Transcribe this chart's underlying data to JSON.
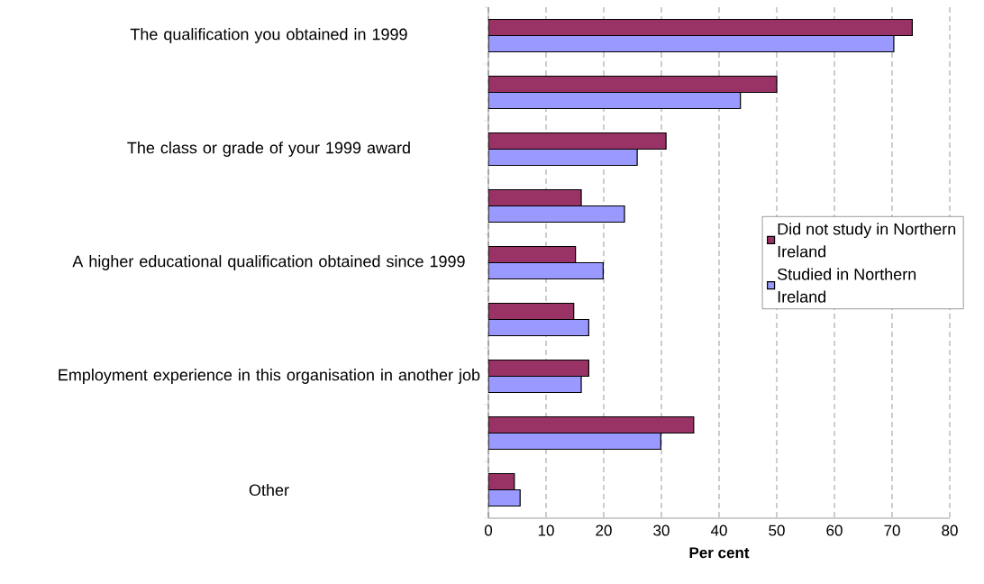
{
  "chart_data": {
    "type": "bar",
    "orientation": "horizontal",
    "xlabel": "Per cent",
    "categories": [
      "The qualification you obtained in 1999",
      null,
      "The class or grade of your 1999 award",
      null,
      "A higher educational qualification obtained since 1999",
      null,
      "Employment experience in this organisation in another job",
      null,
      "Other"
    ],
    "series": [
      {
        "name": "Did not study in Northern Ireland",
        "color": "#993366",
        "values": [
          73.5,
          50.0,
          30.8,
          16.1,
          15.1,
          14.8,
          17.4,
          35.6,
          4.5
        ]
      },
      {
        "name": "Studied in Northern Ireland",
        "color": "#9999ff",
        "values": [
          70.3,
          43.7,
          25.8,
          23.6,
          19.9,
          17.4,
          16.1,
          29.9,
          5.5
        ]
      }
    ],
    "xlim": [
      0,
      80
    ],
    "xticks": [
      0,
      10,
      20,
      30,
      40,
      50,
      60,
      70,
      80
    ],
    "grid": "x",
    "legend": "right"
  }
}
